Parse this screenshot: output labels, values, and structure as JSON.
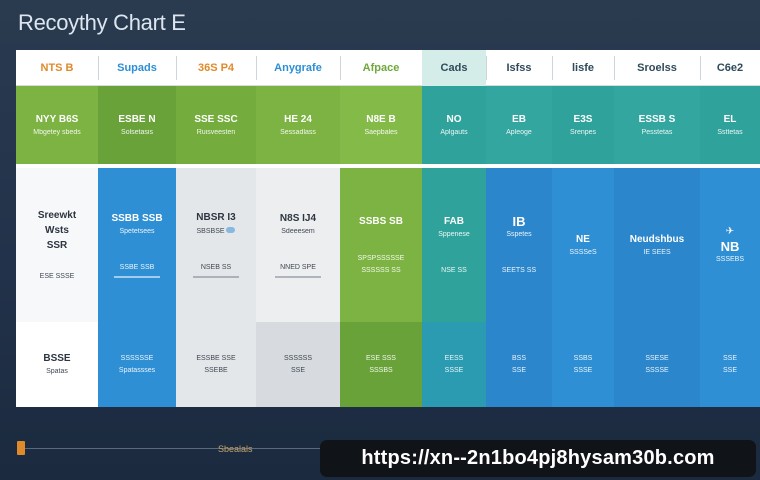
{
  "title": "Recoythy Chart E",
  "header": {
    "columns": [
      {
        "label": "NTS B",
        "color": "#e08a2c"
      },
      {
        "label": "Supads",
        "color": "#2c8fd6"
      },
      {
        "label": "36S P4",
        "color": "#e08a2c"
      },
      {
        "label": "Anygrafe",
        "color": "#2c8fd6"
      },
      {
        "label": "Afpace",
        "color": "#6ea83a"
      },
      {
        "label": "Cads",
        "color": "#2f4a5a"
      },
      {
        "label": "Isfss",
        "color": "#2f4a5a"
      },
      {
        "label": "lisfe",
        "color": "#2f4a5a"
      },
      {
        "label": "Sroelss",
        "color": "#2f4a5a"
      },
      {
        "label": "C6e2",
        "color": "#2f4a5a"
      }
    ]
  },
  "rows": {
    "r1": [
      {
        "main": "NYY B6S",
        "sub": "Mbgetey sbeds"
      },
      {
        "main": "ESBE N",
        "sub": "Solsetasis"
      },
      {
        "main": "SSE SSC",
        "sub": "Ruisveesten"
      },
      {
        "main": "HE 24",
        "sub": "Sessadlass"
      },
      {
        "main": "N8E B",
        "sub": "Saepbales"
      },
      {
        "main": "NO",
        "sub": "Aplgauts"
      },
      {
        "main": "EB",
        "sub": "Apleoge"
      },
      {
        "main": "E3S",
        "sub": "Srenpes"
      },
      {
        "main": "ESSB S",
        "sub": "Pesstetas"
      },
      {
        "main": "EL",
        "sub": "Ssttetas"
      }
    ],
    "r2": [
      {
        "main": "Sreewkt",
        "mid": "Wsts",
        "low": "SSR",
        "sub": "ESE SSSE"
      },
      {
        "main": "SSBB SSB",
        "sub": "Spetetsees",
        "low": "SSBE SSB"
      },
      {
        "main": "NBSR I3",
        "sub": "SBSBSE",
        "low": "NSEB SS"
      },
      {
        "main": "N8S IJ4",
        "sub": "Sdeeesem",
        "low": "NNED SPE"
      },
      {
        "main": "SSBS SB",
        "sub": "SPSPSSSSSE",
        "low": "SSSSSS SS"
      },
      {
        "main": "FAB",
        "sub": "Sppenese",
        "low": "NSE SS"
      },
      {
        "main": "IB",
        "sub": "Sspetes",
        "low": "SEETS SS"
      },
      {
        "main": "NE",
        "sub": "SSSSeS"
      },
      {
        "main": "Neudshbus",
        "sub": "IE SEES"
      },
      {
        "main": "NB",
        "sub": "SSSEBS"
      }
    ],
    "r3": [
      {
        "main": "BSSE",
        "sub": "Spatas"
      },
      {
        "main": "SSSSSSE",
        "sub": "Spatassses"
      },
      {
        "main": "ESSBE SSE",
        "sub": "SSEBE"
      },
      {
        "main": "SSSSSS",
        "sub": "SSE"
      },
      {
        "main": "ESE SSS",
        "sub": "SSSBS"
      },
      {
        "main": "EESS",
        "sub": "SSSE"
      },
      {
        "main": "BSS",
        "sub": "SSE"
      },
      {
        "main": "SSBS",
        "sub": "SSSE"
      },
      {
        "main": "SSESE",
        "sub": "SSSSE"
      },
      {
        "main": "SSE",
        "sub": "SSE"
      }
    ]
  },
  "colors": {
    "green": "#7cb342",
    "green_dark": "#6aa23a",
    "teal": "#2fa39b",
    "teal2": "#33a6a0",
    "blue": "#2f8fd4",
    "blue2": "#2b86cc",
    "gray": "#e4e7ea"
  },
  "footer": {
    "label": "Sbealals",
    "url": "https://xn--2n1bo4pj8hysam30b.com"
  }
}
